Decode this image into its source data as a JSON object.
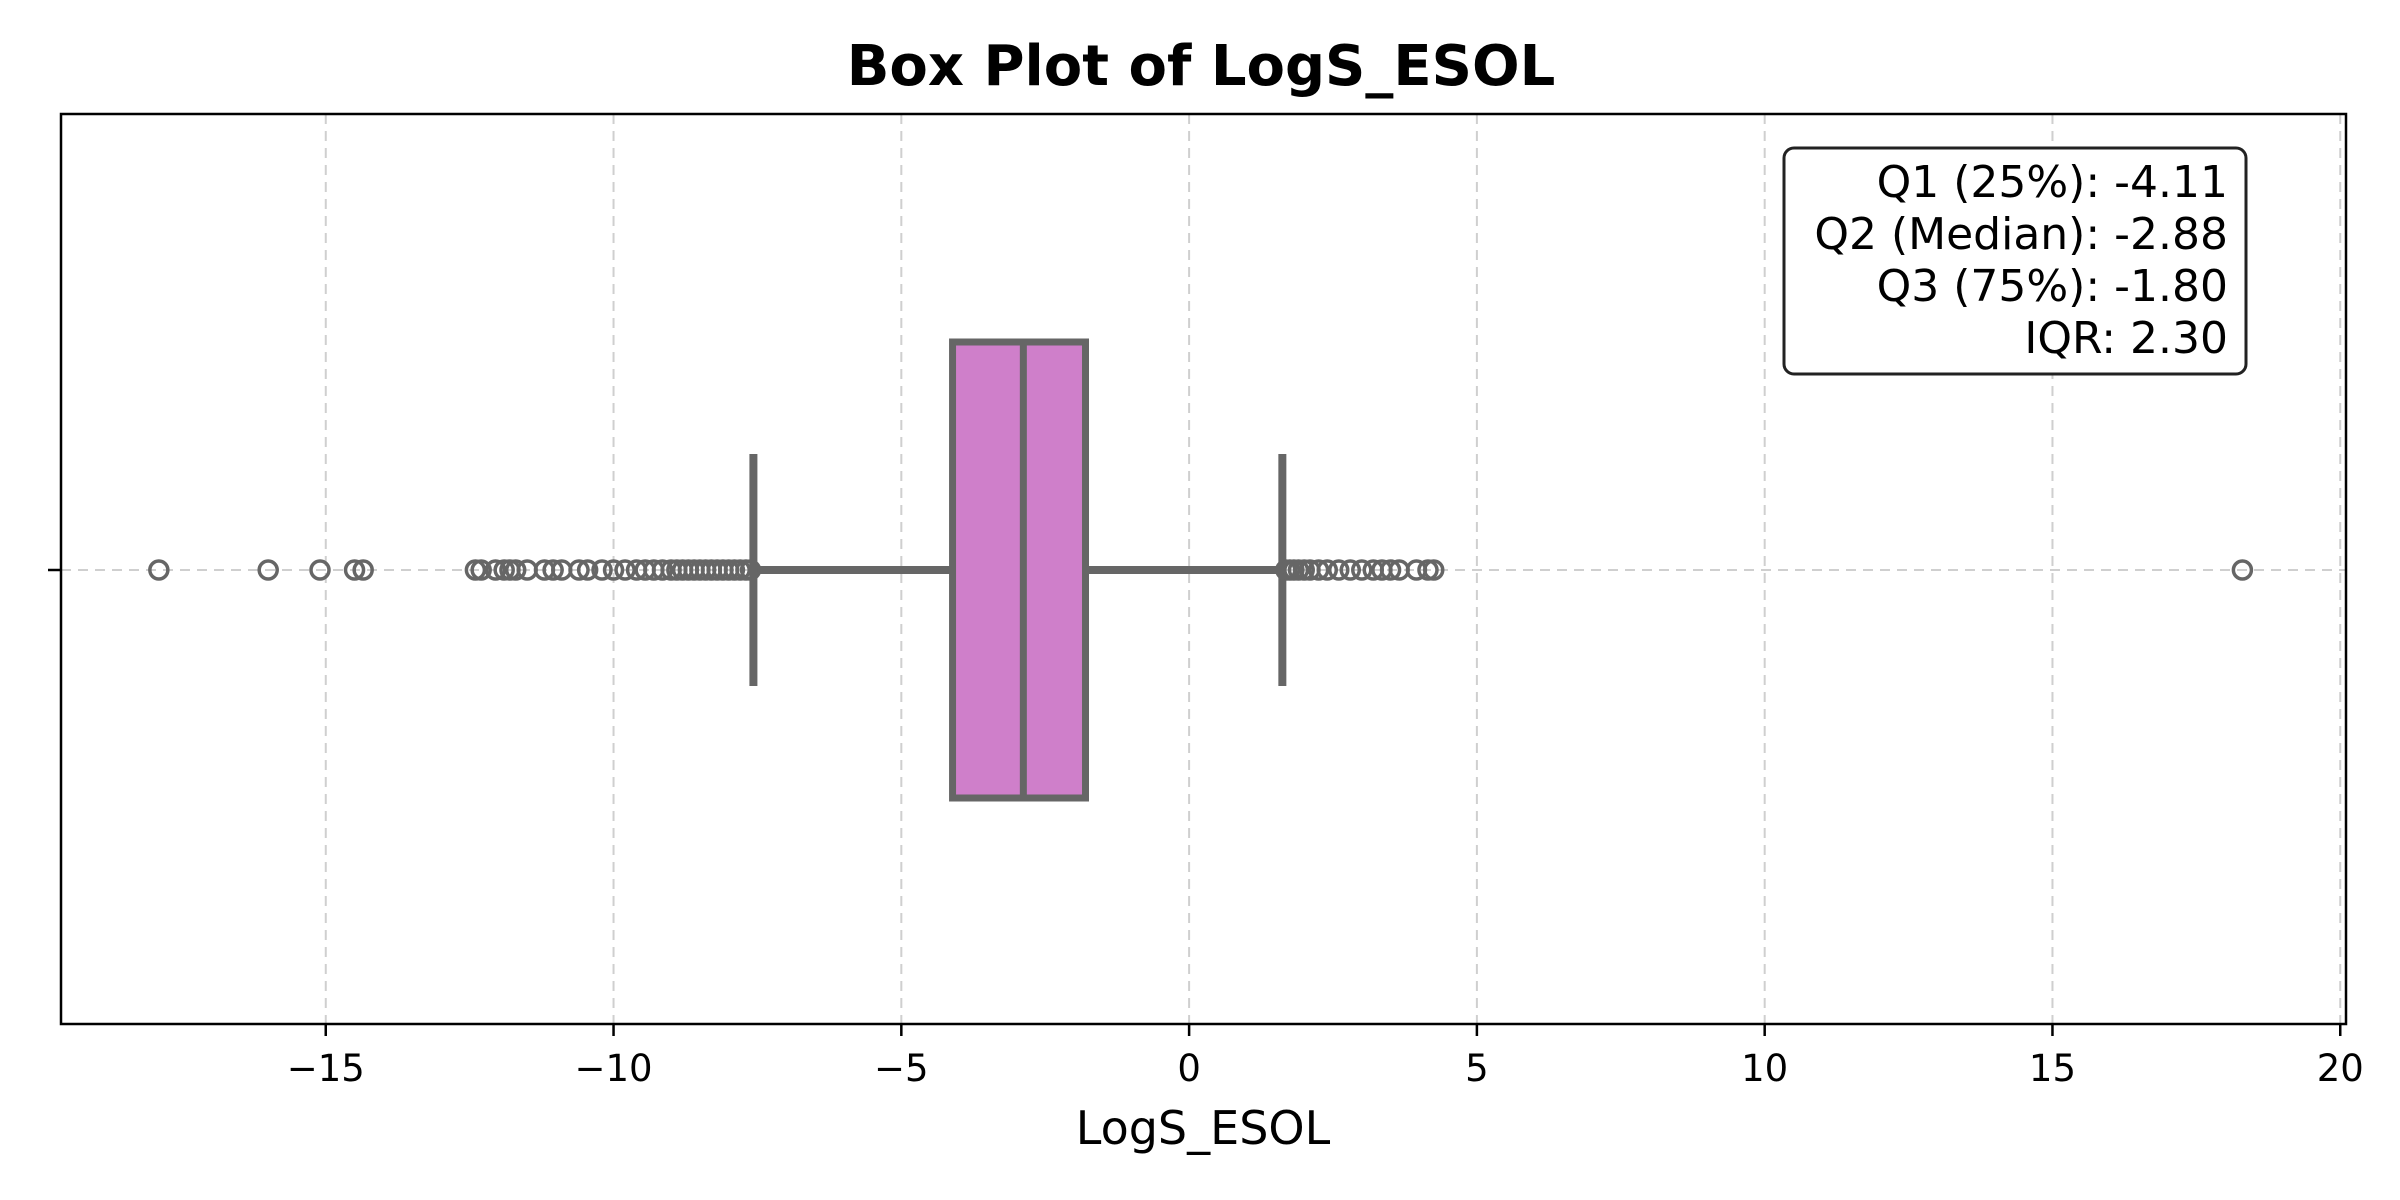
{
  "chart_data": {
    "type": "box",
    "title": "Box Plot of LogS_ESOL",
    "xlabel": "LogS_ESOL",
    "ylabel": "",
    "xlim": [
      -19.6,
      20.1
    ],
    "xticks": [
      -15,
      -10,
      -5,
      0,
      5,
      10,
      15,
      20
    ],
    "xtick_labels": [
      "−15",
      "−10",
      "−5",
      "0",
      "5",
      "10",
      "15",
      "20"
    ],
    "grid": "dashed",
    "box": {
      "q1": -4.11,
      "median": -2.88,
      "q3": -1.8,
      "iqr": 2.3,
      "whisker_low": -7.57,
      "whisker_high": 1.62,
      "fill_color": "#cf7fca",
      "edge_color": "#666666"
    },
    "outliers": [
      -17.9,
      -16.0,
      -15.1,
      -14.5,
      -14.35,
      -12.4,
      -12.3,
      -12.05,
      -11.9,
      -11.8,
      -11.7,
      -11.5,
      -11.2,
      -11.05,
      -10.9,
      -10.6,
      -10.45,
      -10.2,
      -10.0,
      -9.8,
      -9.6,
      -9.45,
      -9.3,
      -9.15,
      -9.0,
      -8.9,
      -8.8,
      -8.7,
      -8.6,
      -8.5,
      -8.4,
      -8.3,
      -8.2,
      -8.1,
      -8.0,
      -7.9,
      -7.8,
      -7.7,
      -7.62,
      1.68,
      1.75,
      1.82,
      1.9,
      2.0,
      2.1,
      2.25,
      2.4,
      2.6,
      2.8,
      3.0,
      3.2,
      3.35,
      3.5,
      3.65,
      3.95,
      4.15,
      4.25,
      18.3
    ],
    "stats_box": {
      "position": "top-right",
      "lines": [
        "Q1 (25%): -4.11",
        "Q2 (Median): -2.88",
        "Q3 (75%): -1.80",
        "IQR: 2.30"
      ]
    }
  }
}
